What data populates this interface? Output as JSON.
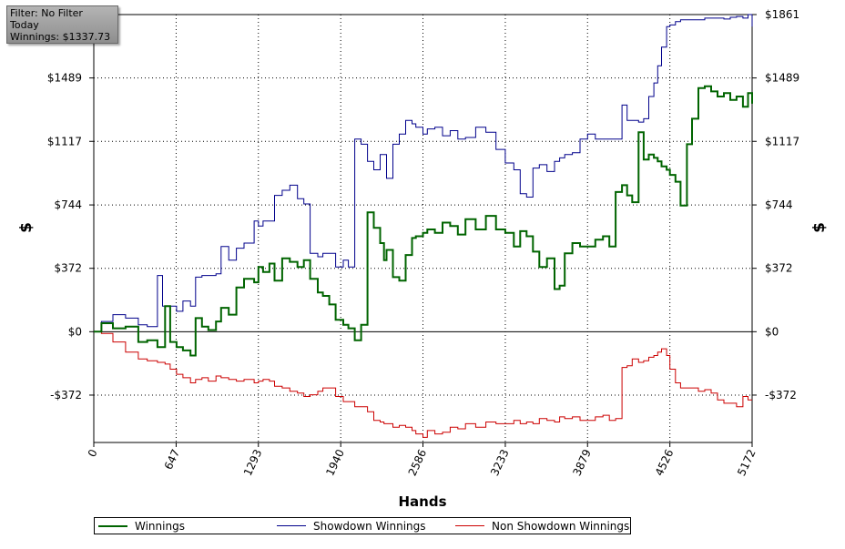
{
  "filter_box": {
    "line1": "Filter: No Filter",
    "line2": "Today",
    "line3": "Winnings: $1337.73"
  },
  "chart_data": {
    "type": "line",
    "xlabel": "Hands",
    "ylabel_left": "$",
    "ylabel_right": "$",
    "xlim": [
      0,
      5172
    ],
    "ylim": [
      -650,
      1861
    ],
    "x_ticks": [
      0,
      647,
      1293,
      1940,
      2586,
      3233,
      3879,
      4526,
      5172
    ],
    "y_ticks": [
      -372,
      0,
      372,
      744,
      1117,
      1489,
      1861
    ],
    "y_tick_labels": [
      "-$372",
      "$0",
      "$372",
      "$744",
      "$1117",
      "$1489",
      "$1861"
    ],
    "grid": true,
    "legend_position": "bottom",
    "series": [
      {
        "name": "Winnings",
        "color": "#006400",
        "x": [
          0,
          60,
          150,
          250,
          350,
          420,
          500,
          560,
          600,
          650,
          700,
          760,
          800,
          850,
          900,
          960,
          1000,
          1060,
          1120,
          1180,
          1260,
          1293,
          1330,
          1380,
          1420,
          1480,
          1540,
          1600,
          1650,
          1700,
          1760,
          1800,
          1850,
          1900,
          1960,
          2000,
          2050,
          2100,
          2150,
          2200,
          2250,
          2280,
          2300,
          2350,
          2400,
          2450,
          2500,
          2530,
          2586,
          2620,
          2680,
          2740,
          2800,
          2860,
          2920,
          3000,
          3080,
          3160,
          3233,
          3300,
          3350,
          3400,
          3450,
          3500,
          3560,
          3620,
          3660,
          3700,
          3760,
          3820,
          3879,
          3940,
          4000,
          4050,
          4100,
          4150,
          4190,
          4230,
          4280,
          4320,
          4360,
          4400,
          4430,
          4460,
          4500,
          4526,
          4570,
          4610,
          4660,
          4700,
          4750,
          4800,
          4850,
          4900,
          4950,
          5000,
          5050,
          5100,
          5140,
          5172
        ],
        "y": [
          0,
          50,
          20,
          30,
          -60,
          -50,
          -90,
          150,
          -60,
          -90,
          -110,
          -140,
          80,
          30,
          10,
          60,
          140,
          100,
          260,
          310,
          290,
          380,
          350,
          400,
          300,
          430,
          410,
          380,
          420,
          310,
          230,
          210,
          160,
          70,
          40,
          20,
          -50,
          40,
          700,
          610,
          520,
          420,
          480,
          320,
          300,
          450,
          550,
          560,
          580,
          600,
          580,
          640,
          620,
          570,
          660,
          600,
          680,
          600,
          580,
          500,
          590,
          560,
          470,
          380,
          430,
          250,
          270,
          460,
          520,
          500,
          500,
          540,
          560,
          500,
          820,
          860,
          800,
          760,
          1170,
          1010,
          1040,
          1020,
          1000,
          970,
          950,
          920,
          880,
          740,
          1100,
          1250,
          1430,
          1440,
          1410,
          1380,
          1400,
          1360,
          1380,
          1320,
          1400,
          1337.73
        ]
      },
      {
        "name": "Showdown Winnings",
        "color": "#00008b",
        "x": [
          0,
          60,
          150,
          250,
          350,
          420,
          500,
          540,
          600,
          650,
          700,
          760,
          800,
          850,
          900,
          960,
          1000,
          1060,
          1120,
          1180,
          1260,
          1293,
          1330,
          1380,
          1420,
          1480,
          1540,
          1600,
          1650,
          1700,
          1760,
          1800,
          1850,
          1900,
          1960,
          2000,
          2050,
          2100,
          2150,
          2200,
          2250,
          2280,
          2300,
          2350,
          2400,
          2450,
          2500,
          2530,
          2586,
          2620,
          2680,
          2740,
          2800,
          2860,
          2920,
          3000,
          3080,
          3160,
          3233,
          3300,
          3350,
          3400,
          3450,
          3500,
          3560,
          3620,
          3660,
          3700,
          3760,
          3820,
          3879,
          3940,
          4000,
          4050,
          4100,
          4150,
          4190,
          4230,
          4280,
          4320,
          4360,
          4400,
          4430,
          4460,
          4500,
          4526,
          4570,
          4610,
          4660,
          4700,
          4750,
          4800,
          4850,
          4900,
          4950,
          5000,
          5050,
          5100,
          5140,
          5172
        ],
        "y": [
          0,
          60,
          100,
          80,
          40,
          30,
          330,
          150,
          150,
          120,
          180,
          150,
          320,
          330,
          330,
          340,
          500,
          420,
          490,
          520,
          650,
          620,
          650,
          650,
          800,
          830,
          860,
          780,
          750,
          460,
          440,
          460,
          460,
          380,
          420,
          380,
          1130,
          1100,
          1000,
          950,
          1040,
          1040,
          900,
          1100,
          1160,
          1240,
          1220,
          1200,
          1160,
          1190,
          1200,
          1150,
          1180,
          1130,
          1140,
          1200,
          1170,
          1070,
          990,
          950,
          810,
          790,
          960,
          980,
          940,
          1000,
          1020,
          1040,
          1050,
          1130,
          1160,
          1130,
          1130,
          1130,
          1130,
          1330,
          1240,
          1240,
          1230,
          1250,
          1380,
          1460,
          1560,
          1670,
          1790,
          1800,
          1820,
          1830,
          1830,
          1830,
          1830,
          1840,
          1840,
          1840,
          1835,
          1845,
          1850,
          1840,
          1861,
          1790
        ]
      },
      {
        "name": "Non Showdown Winnings",
        "color": "#cc0000",
        "x": [
          0,
          60,
          150,
          250,
          350,
          420,
          500,
          560,
          600,
          650,
          700,
          760,
          800,
          850,
          900,
          960,
          1000,
          1060,
          1120,
          1180,
          1260,
          1293,
          1330,
          1380,
          1420,
          1480,
          1540,
          1600,
          1650,
          1700,
          1760,
          1800,
          1850,
          1900,
          1960,
          2000,
          2050,
          2100,
          2150,
          2200,
          2250,
          2280,
          2300,
          2350,
          2400,
          2450,
          2500,
          2530,
          2586,
          2620,
          2680,
          2740,
          2800,
          2860,
          2920,
          3000,
          3080,
          3160,
          3233,
          3300,
          3350,
          3400,
          3450,
          3500,
          3560,
          3620,
          3660,
          3700,
          3760,
          3820,
          3879,
          3940,
          4000,
          4050,
          4100,
          4150,
          4190,
          4230,
          4280,
          4320,
          4360,
          4400,
          4430,
          4460,
          4500,
          4526,
          4570,
          4610,
          4660,
          4700,
          4750,
          4800,
          4850,
          4900,
          4950,
          5000,
          5050,
          5100,
          5140,
          5172
        ],
        "y": [
          0,
          -10,
          -60,
          -120,
          -160,
          -170,
          -180,
          -190,
          -220,
          -250,
          -270,
          -300,
          -280,
          -270,
          -290,
          -260,
          -270,
          -280,
          -290,
          -280,
          -300,
          -290,
          -280,
          -290,
          -320,
          -330,
          -350,
          -360,
          -380,
          -370,
          -350,
          -330,
          -330,
          -380,
          -410,
          -410,
          -440,
          -440,
          -470,
          -520,
          -530,
          -540,
          -540,
          -560,
          -550,
          -560,
          -580,
          -600,
          -620,
          -580,
          -600,
          -590,
          -560,
          -570,
          -540,
          -560,
          -530,
          -540,
          -540,
          -520,
          -540,
          -530,
          -540,
          -510,
          -520,
          -530,
          -500,
          -510,
          -500,
          -520,
          -520,
          -500,
          -490,
          -520,
          -510,
          -210,
          -200,
          -160,
          -180,
          -170,
          -150,
          -140,
          -120,
          -100,
          -140,
          -220,
          -300,
          -330,
          -330,
          -330,
          -350,
          -340,
          -360,
          -400,
          -420,
          -420,
          -440,
          -380,
          -400,
          -400
        ]
      }
    ]
  }
}
